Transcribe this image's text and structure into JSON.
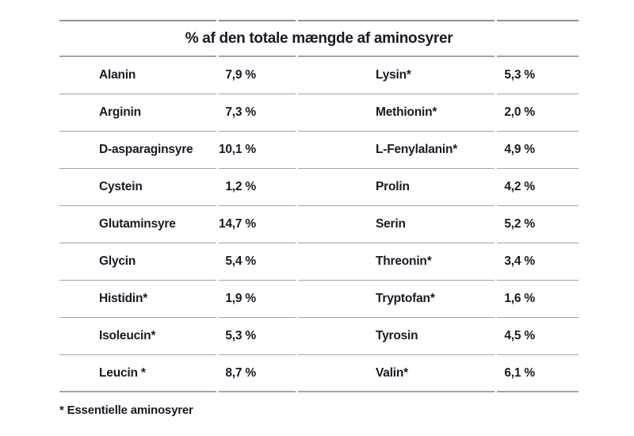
{
  "title": "% af den totale mængde af aminosyrer",
  "footnote": "* Essentielle aminosyrer",
  "colors": {
    "text": "#171b24",
    "line_strong": "#8f8f94",
    "line_light": "#a3a3a9",
    "background": "#ffffff"
  },
  "chart_data": {
    "type": "table",
    "title": "% af den totale mængde af aminosyrer",
    "footnote": "* Essentielle aminosyrer",
    "columns": [
      "name_left",
      "value_left",
      "name_right",
      "value_right"
    ],
    "rows": [
      {
        "name_left": "Alanin",
        "value_left": "7,9 %",
        "name_right": "Lysin*",
        "value_right": "5,3 %"
      },
      {
        "name_left": "Arginin",
        "value_left": "7,3 %",
        "name_right": "Methionin*",
        "value_right": "2,0 %"
      },
      {
        "name_left": "D-asparaginsyre",
        "value_left": "10,1 %",
        "name_right": "L-Fenylalanin*",
        "value_right": "4,9 %"
      },
      {
        "name_left": "Cystein",
        "value_left": "1,2 %",
        "name_right": "Prolin",
        "value_right": "4,2 %"
      },
      {
        "name_left": "Glutaminsyre",
        "value_left": "14,7 %",
        "name_right": "Serin",
        "value_right": "5,2 %"
      },
      {
        "name_left": "Glycin",
        "value_left": "5,4 %",
        "name_right": "Threonin*",
        "value_right": "3,4 %"
      },
      {
        "name_left": "Histidin*",
        "value_left": "1,9 %",
        "name_right": "Tryptofan*",
        "value_right": "1,6 %"
      },
      {
        "name_left": "Isoleucin*",
        "value_left": "5,3 %",
        "name_right": "Tyrosin",
        "value_right": "4,5 %"
      },
      {
        "name_left": "Leucin *",
        "value_left": "8,7 %",
        "name_right": "Valin*",
        "value_right": "6,1 %"
      }
    ],
    "entries": [
      {
        "name": "Alanin",
        "percent": 7.9,
        "essential": false
      },
      {
        "name": "Arginin",
        "percent": 7.3,
        "essential": false
      },
      {
        "name": "D-asparaginsyre",
        "percent": 10.1,
        "essential": false
      },
      {
        "name": "Cystein",
        "percent": 1.2,
        "essential": false
      },
      {
        "name": "Glutaminsyre",
        "percent": 14.7,
        "essential": false
      },
      {
        "name": "Glycin",
        "percent": 5.4,
        "essential": false
      },
      {
        "name": "Histidin",
        "percent": 1.9,
        "essential": true
      },
      {
        "name": "Isoleucin",
        "percent": 5.3,
        "essential": true
      },
      {
        "name": "Leucin",
        "percent": 8.7,
        "essential": true
      },
      {
        "name": "Lysin",
        "percent": 5.3,
        "essential": true
      },
      {
        "name": "Methionin",
        "percent": 2.0,
        "essential": true
      },
      {
        "name": "L-Fenylalanin",
        "percent": 4.9,
        "essential": true
      },
      {
        "name": "Prolin",
        "percent": 4.2,
        "essential": false
      },
      {
        "name": "Serin",
        "percent": 5.2,
        "essential": false
      },
      {
        "name": "Threonin",
        "percent": 3.4,
        "essential": true
      },
      {
        "name": "Tryptofan",
        "percent": 1.6,
        "essential": true
      },
      {
        "name": "Tyrosin",
        "percent": 4.5,
        "essential": false
      },
      {
        "name": "Valin",
        "percent": 6.1,
        "essential": true
      }
    ]
  }
}
